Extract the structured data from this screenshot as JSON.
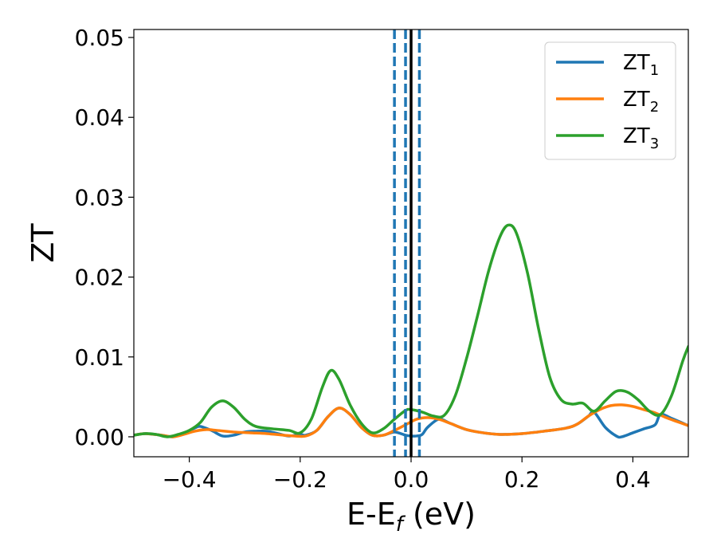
{
  "chart_data": {
    "type": "line",
    "xlabel": {
      "base": "E-E",
      "sub": "f",
      "suffix": " (eV)"
    },
    "ylabel": "ZT",
    "xlim": [
      -0.5,
      0.5
    ],
    "ylim": [
      -0.0025,
      0.051
    ],
    "xticks": [
      {
        "value": -0.4,
        "label": "−0.4"
      },
      {
        "value": -0.2,
        "label": "−0.2"
      },
      {
        "value": 0.0,
        "label": "0.0"
      },
      {
        "value": 0.2,
        "label": "0.2"
      },
      {
        "value": 0.4,
        "label": "0.4"
      }
    ],
    "yticks": [
      {
        "value": 0.0,
        "label": "0.00"
      },
      {
        "value": 0.01,
        "label": "0.01"
      },
      {
        "value": 0.02,
        "label": "0.02"
      },
      {
        "value": 0.03,
        "label": "0.03"
      },
      {
        "value": 0.04,
        "label": "0.04"
      },
      {
        "value": 0.05,
        "label": "0.05"
      }
    ],
    "grid": false,
    "legend_position": "top-right",
    "vertical_lines": [
      {
        "x": -0.03,
        "style": "dashed",
        "color": "#1f77b4"
      },
      {
        "x": -0.01,
        "style": "dashed",
        "color": "#1f77b4"
      },
      {
        "x": 0.015,
        "style": "dashed",
        "color": "#1f77b4"
      },
      {
        "x": 0.0,
        "style": "solid",
        "color": "#000000"
      }
    ],
    "series": [
      {
        "name": "ZT",
        "sub": "1",
        "color": "#1f77b4",
        "points": [
          [
            -0.5,
            0.0002
          ],
          [
            -0.48,
            0.0004
          ],
          [
            -0.45,
            0.0002
          ],
          [
            -0.43,
            0.0
          ],
          [
            -0.41,
            0.0004
          ],
          [
            -0.39,
            0.0011
          ],
          [
            -0.38,
            0.0013
          ],
          [
            -0.36,
            0.0008
          ],
          [
            -0.34,
            0.0001
          ],
          [
            -0.32,
            0.0002
          ],
          [
            -0.3,
            0.0006
          ],
          [
            -0.28,
            0.0007
          ],
          [
            -0.26,
            0.0007
          ],
          [
            -0.24,
            0.0004
          ],
          [
            -0.22,
            0.0001
          ],
          [
            -0.2,
            0.0003
          ],
          [
            -0.19,
            0.0002
          ],
          [
            -0.17,
            0.0008
          ],
          [
            -0.15,
            0.0025
          ],
          [
            -0.13,
            0.0036
          ],
          [
            -0.11,
            0.0028
          ],
          [
            -0.09,
            0.0012
          ],
          [
            -0.07,
            0.0002
          ],
          [
            -0.05,
            0.0002
          ],
          [
            -0.03,
            0.0006
          ],
          [
            -0.01,
            0.0002
          ],
          [
            0.0,
            0.0001
          ],
          [
            0.01,
            0.0001
          ],
          [
            0.02,
            0.0003
          ],
          [
            0.03,
            0.0012
          ],
          [
            0.05,
            0.0022
          ],
          [
            0.07,
            0.0017
          ],
          [
            0.1,
            0.0009
          ],
          [
            0.13,
            0.0005
          ],
          [
            0.16,
            0.0003
          ],
          [
            0.2,
            0.0004
          ],
          [
            0.24,
            0.0007
          ],
          [
            0.28,
            0.0011
          ],
          [
            0.3,
            0.0016
          ],
          [
            0.32,
            0.0026
          ],
          [
            0.33,
            0.0031
          ],
          [
            0.35,
            0.0012
          ],
          [
            0.37,
            0.0001
          ],
          [
            0.38,
            0.0
          ],
          [
            0.4,
            0.0005
          ],
          [
            0.42,
            0.001
          ],
          [
            0.44,
            0.0015
          ],
          [
            0.45,
            0.0028
          ],
          [
            0.47,
            0.0023
          ],
          [
            0.5,
            0.0014
          ]
        ]
      },
      {
        "name": "ZT",
        "sub": "2",
        "color": "#ff7f0e",
        "points": [
          [
            -0.5,
            0.0002
          ],
          [
            -0.48,
            0.0004
          ],
          [
            -0.45,
            0.0002
          ],
          [
            -0.43,
            0.0
          ],
          [
            -0.41,
            0.0003
          ],
          [
            -0.39,
            0.0007
          ],
          [
            -0.37,
            0.0009
          ],
          [
            -0.35,
            0.0008
          ],
          [
            -0.32,
            0.0006
          ],
          [
            -0.29,
            0.0005
          ],
          [
            -0.26,
            0.0004
          ],
          [
            -0.23,
            0.0002
          ],
          [
            -0.21,
            0.0001
          ],
          [
            -0.19,
            0.0001
          ],
          [
            -0.17,
            0.0008
          ],
          [
            -0.15,
            0.0025
          ],
          [
            -0.13,
            0.0036
          ],
          [
            -0.11,
            0.0028
          ],
          [
            -0.09,
            0.0012
          ],
          [
            -0.07,
            0.0002
          ],
          [
            -0.05,
            0.0002
          ],
          [
            -0.03,
            0.0008
          ],
          [
            -0.01,
            0.0015
          ],
          [
            0.01,
            0.0022
          ],
          [
            0.03,
            0.0024
          ],
          [
            0.05,
            0.0022
          ],
          [
            0.07,
            0.0017
          ],
          [
            0.1,
            0.0009
          ],
          [
            0.13,
            0.0005
          ],
          [
            0.16,
            0.0003
          ],
          [
            0.2,
            0.0004
          ],
          [
            0.24,
            0.0007
          ],
          [
            0.28,
            0.0011
          ],
          [
            0.3,
            0.0016
          ],
          [
            0.32,
            0.0026
          ],
          [
            0.34,
            0.0034
          ],
          [
            0.36,
            0.0039
          ],
          [
            0.38,
            0.004
          ],
          [
            0.4,
            0.0038
          ],
          [
            0.42,
            0.0034
          ],
          [
            0.44,
            0.003
          ],
          [
            0.46,
            0.0024
          ],
          [
            0.48,
            0.0019
          ],
          [
            0.5,
            0.0014
          ]
        ]
      },
      {
        "name": "ZT",
        "sub": "3",
        "color": "#2ca02c",
        "points": [
          [
            -0.5,
            0.0002
          ],
          [
            -0.48,
            0.0004
          ],
          [
            -0.46,
            0.0003
          ],
          [
            -0.44,
            0.0
          ],
          [
            -0.42,
            0.0003
          ],
          [
            -0.4,
            0.0008
          ],
          [
            -0.38,
            0.0018
          ],
          [
            -0.36,
            0.0037
          ],
          [
            -0.34,
            0.0045
          ],
          [
            -0.32,
            0.0037
          ],
          [
            -0.3,
            0.0022
          ],
          [
            -0.28,
            0.0013
          ],
          [
            -0.25,
            0.001
          ],
          [
            -0.22,
            0.0008
          ],
          [
            -0.2,
            0.0005
          ],
          [
            -0.18,
            0.0022
          ],
          [
            -0.16,
            0.0062
          ],
          [
            -0.145,
            0.0083
          ],
          [
            -0.13,
            0.0072
          ],
          [
            -0.11,
            0.004
          ],
          [
            -0.09,
            0.0017
          ],
          [
            -0.07,
            0.0005
          ],
          [
            -0.05,
            0.001
          ],
          [
            -0.03,
            0.0022
          ],
          [
            -0.01,
            0.0033
          ],
          [
            0.0,
            0.0034
          ],
          [
            0.02,
            0.0031
          ],
          [
            0.04,
            0.0026
          ],
          [
            0.06,
            0.0027
          ],
          [
            0.08,
            0.0052
          ],
          [
            0.1,
            0.0098
          ],
          [
            0.12,
            0.0152
          ],
          [
            0.14,
            0.0208
          ],
          [
            0.16,
            0.025
          ],
          [
            0.175,
            0.0265
          ],
          [
            0.19,
            0.0255
          ],
          [
            0.21,
            0.0205
          ],
          [
            0.23,
            0.0135
          ],
          [
            0.25,
            0.0075
          ],
          [
            0.27,
            0.0047
          ],
          [
            0.29,
            0.0041
          ],
          [
            0.31,
            0.0042
          ],
          [
            0.33,
            0.0032
          ],
          [
            0.35,
            0.0045
          ],
          [
            0.37,
            0.0057
          ],
          [
            0.39,
            0.0056
          ],
          [
            0.41,
            0.0046
          ],
          [
            0.43,
            0.0032
          ],
          [
            0.45,
            0.0028
          ],
          [
            0.47,
            0.0052
          ],
          [
            0.49,
            0.0095
          ],
          [
            0.5,
            0.0113
          ]
        ]
      }
    ]
  }
}
